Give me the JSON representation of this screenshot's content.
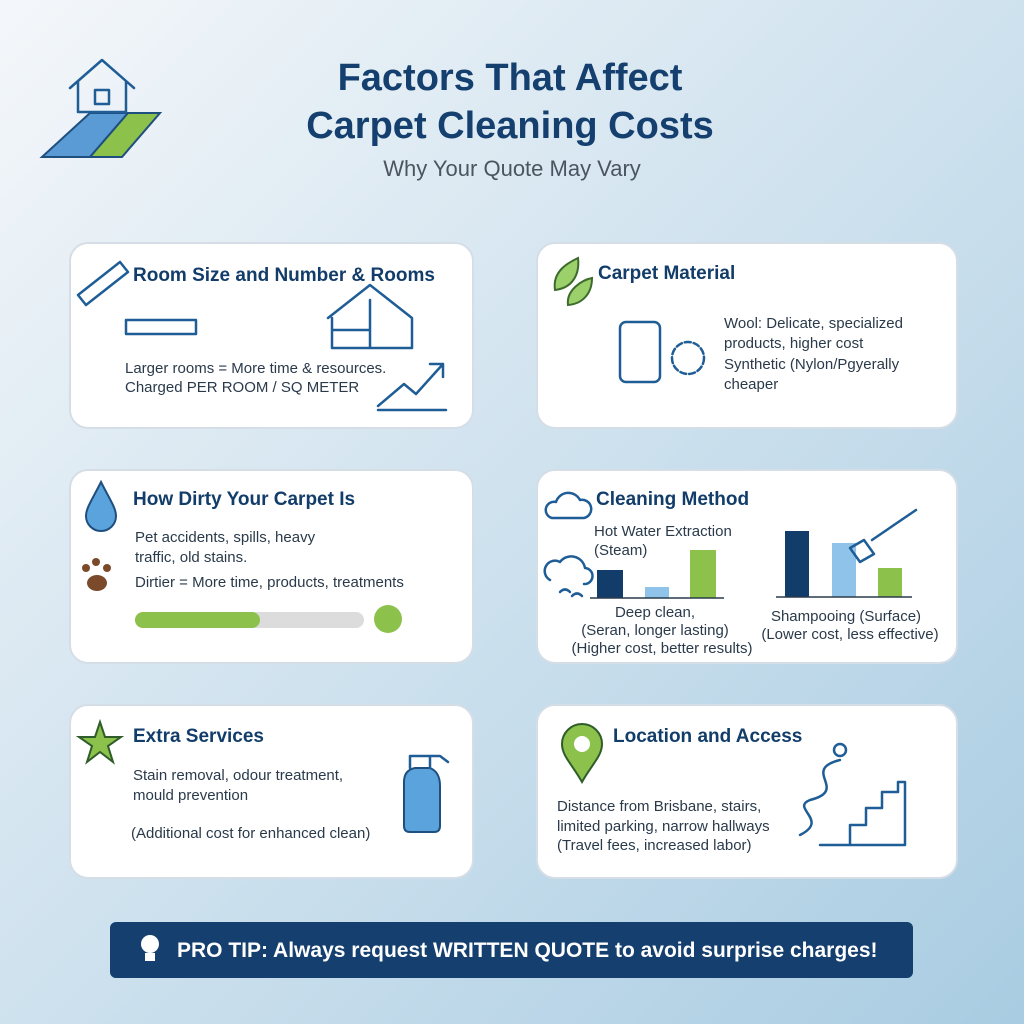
{
  "header": {
    "title_lines": [
      "Factors That Affect",
      "Carpet Cleaning Costs"
    ],
    "subtitle": "Why Your Quote May Vary"
  },
  "cards": [
    {
      "title": "Room Size and Number & Rooms",
      "lines": [
        "Larger rooms = More time & resources.",
        "Charged PER ROOM / SQ METER"
      ]
    },
    {
      "title": "Carpet Material",
      "lines": [
        "Wool: Delicate, specialized",
        "products, higher cost",
        "Synthetic (Nylon/Pgyerally",
        "cheaper"
      ]
    },
    {
      "title": "How Dirty Your Carpet Is",
      "lines": [
        "Pet accidents, spills, heavy",
        "traffic, old stains.",
        "Dirtier = More time, products, treatments"
      ]
    },
    {
      "title": "Cleaning Method",
      "lines": [
        "Hot Water Extraction",
        "(Steam)",
        "Deep clean,",
        "(Seran, longer lasting)",
        "(Higher cost, better results)",
        "Shampooing (Surface)",
        "(Lower cost, less effective)"
      ]
    },
    {
      "title": "Extra Services",
      "lines": [
        "Stain removal, odour treatment,",
        "mould prevention",
        "(Additional cost for enhanced clean)"
      ]
    },
    {
      "title": "Location and Access",
      "lines": [
        "Distance from Brisbane, stairs,",
        "limited parking, narrow hallways",
        "(Travel fees, increased labor)"
      ]
    }
  ],
  "pro_tip": "PRO TIP: Always request WRITTEN QUOTE to avoid surprise charges!"
}
